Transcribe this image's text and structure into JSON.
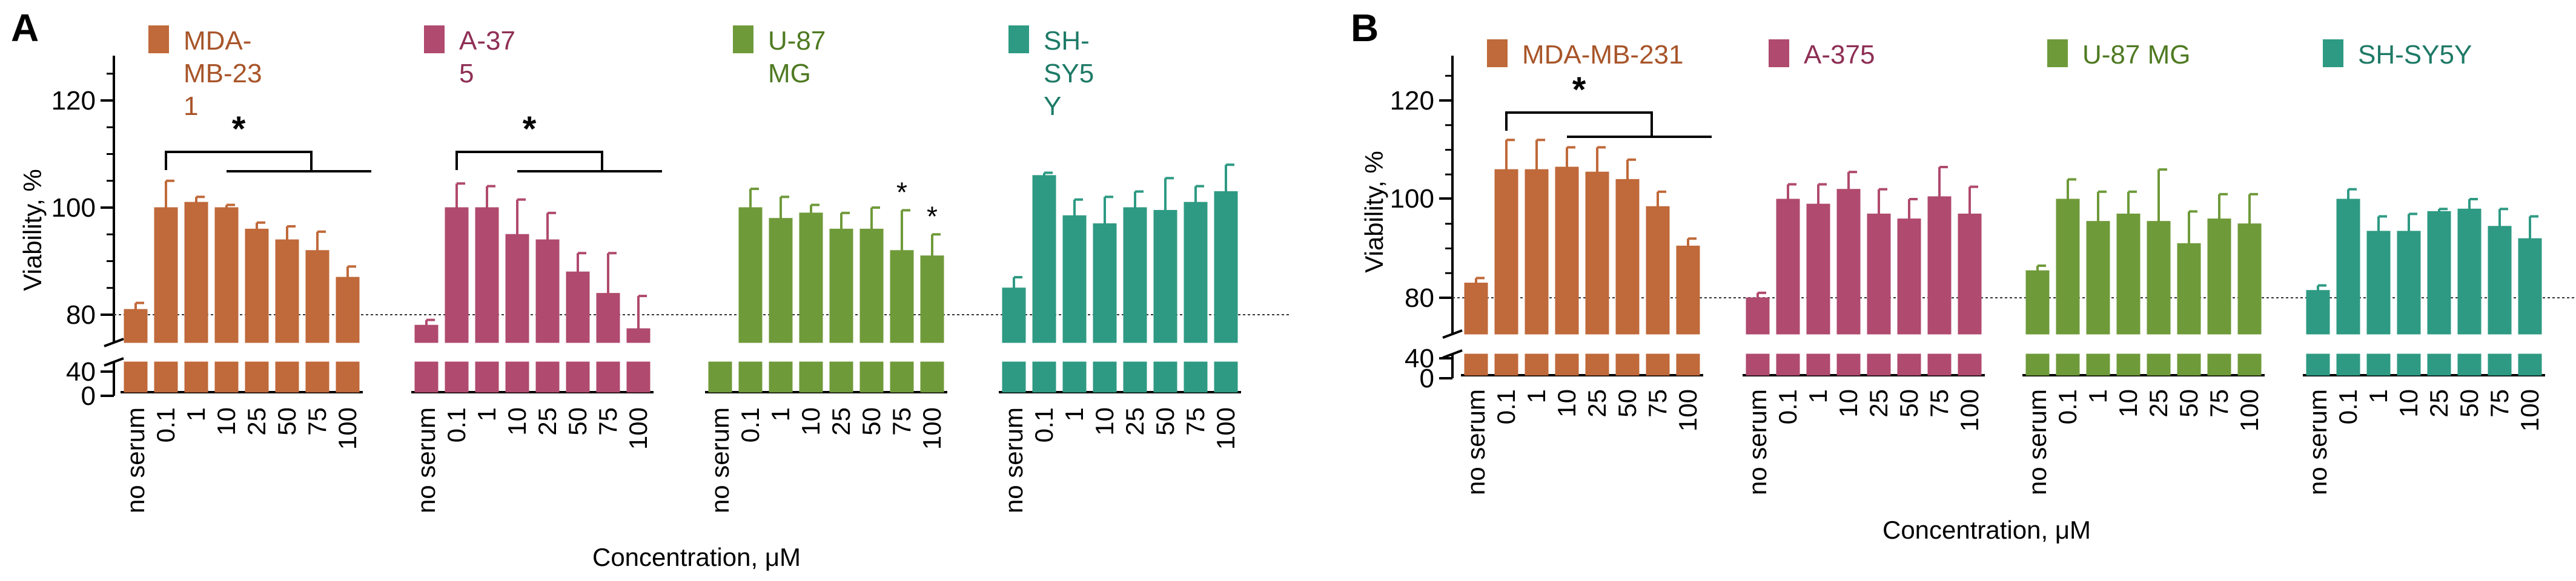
{
  "chart_data": [
    {
      "panel": "A",
      "type": "bar",
      "ylabel": "Viability, %",
      "xlabel": "Concentration, μM",
      "yticks": [
        "120",
        "100",
        "80",
        "40",
        "0"
      ],
      "reference_line": 80,
      "categories": [
        "no serum",
        "0.1",
        "1",
        "10",
        "25",
        "50",
        "75",
        "100"
      ],
      "series": [
        {
          "name": "MDA-MB-231",
          "legend_lines": [
            "MDA-",
            "MB-23",
            "1"
          ],
          "color": "#C0693A",
          "text_color": "#A8552A",
          "values": [
            81,
            100,
            101,
            100,
            96,
            94,
            92,
            87
          ],
          "errors": [
            1.2,
            5,
            1,
            0.5,
            1.2,
            2.5,
            3.5,
            2
          ]
        },
        {
          "name": "A-375",
          "legend_lines": [
            "A-37",
            "5"
          ],
          "color": "#B04A6E",
          "text_color": "#8E2F55",
          "values": [
            77,
            100,
            100,
            95,
            94,
            88,
            84,
            76
          ],
          "errors": [
            1.5,
            4.5,
            4,
            6.5,
            5,
            3.5,
            7.5,
            7.5
          ]
        },
        {
          "name": "U-87 MG",
          "legend_lines": [
            "U-87",
            "MG"
          ],
          "color": "#6F9A3A",
          "text_color": "#4F7A22",
          "values": [
            50,
            100,
            98,
            99,
            96,
            96,
            92,
            91
          ],
          "errors": [
            0,
            3.5,
            4,
            1.5,
            3,
            4,
            7.5,
            4
          ]
        },
        {
          "name": "SH-SY5Y",
          "legend_lines": [
            "SH-",
            "SY5",
            "Y"
          ],
          "color": "#2E9A83",
          "text_color": "#1E7A66",
          "values": [
            85,
            106,
            98.5,
            97,
            100,
            99.5,
            101,
            103
          ],
          "errors": [
            2,
            0.5,
            3,
            5,
            3,
            6,
            3,
            5
          ]
        }
      ],
      "brackets": [
        {
          "series": "MDA-MB-231",
          "label": "*"
        },
        {
          "series": "A-375",
          "label": "*"
        }
      ],
      "stars": [
        {
          "series": "U-87 MG",
          "category": "75",
          "label": "*"
        },
        {
          "series": "U-87 MG",
          "category": "100",
          "label": "*"
        }
      ]
    },
    {
      "panel": "B",
      "type": "bar",
      "ylabel": "Viability, %",
      "xlabel": "Concentration, μM",
      "yticks": [
        "120",
        "100",
        "80",
        "40",
        "0"
      ],
      "reference_line": 80,
      "categories": [
        "no serum",
        "0.1",
        "1",
        "10",
        "25",
        "50",
        "75",
        "100"
      ],
      "series": [
        {
          "name": "MDA-MB-231",
          "legend_lines": [
            "MDA-MB-231"
          ],
          "color": "#C0693A",
          "text_color": "#A8552A",
          "values": [
            83,
            106,
            106,
            106.5,
            105.5,
            104,
            98.5,
            90.5
          ],
          "errors": [
            1,
            6,
            6,
            4,
            5,
            4,
            3,
            1.5
          ]
        },
        {
          "name": "A-375",
          "legend_lines": [
            "A-375"
          ],
          "color": "#B04A6E",
          "text_color": "#8E2F55",
          "values": [
            80,
            100,
            99,
            102,
            97,
            96,
            100.5,
            97
          ],
          "errors": [
            1,
            3,
            4,
            3.5,
            5,
            4,
            6,
            5.5
          ]
        },
        {
          "name": "U-87 MG",
          "legend_lines": [
            "U-87 MG"
          ],
          "color": "#6F9A3A",
          "text_color": "#4F7A22",
          "values": [
            85.5,
            100,
            95.5,
            97,
            95.5,
            91,
            96,
            95
          ],
          "errors": [
            1,
            4,
            6,
            4.5,
            10.5,
            6.5,
            5,
            6
          ]
        },
        {
          "name": "SH-SY5Y",
          "legend_lines": [
            "SH-SY5Y"
          ],
          "color": "#2E9A83",
          "text_color": "#1E7A66",
          "values": [
            81.5,
            100,
            93.5,
            93.5,
            97.5,
            98,
            94.5,
            92
          ],
          "errors": [
            1,
            2,
            3,
            3.5,
            0.5,
            2,
            3.5,
            4.5
          ]
        }
      ],
      "brackets": [
        {
          "series": "MDA-MB-231",
          "label": "*"
        }
      ],
      "stars": []
    }
  ]
}
